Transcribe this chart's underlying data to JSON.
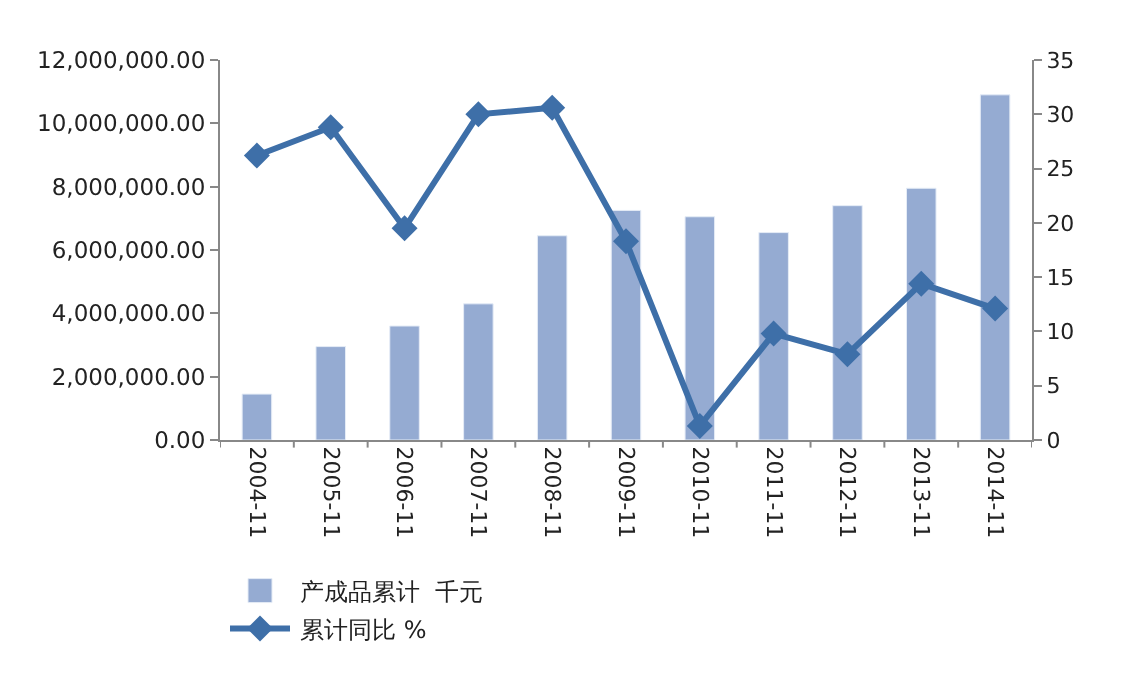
{
  "chart_data": {
    "type": "bar",
    "categories": [
      "2004-11",
      "2005-11",
      "2006-11",
      "2007-11",
      "2008-11",
      "2009-11",
      "2010-11",
      "2011-11",
      "2012-11",
      "2013-11",
      "2014-11"
    ],
    "series": [
      {
        "name": "产成品累计  千元",
        "color": "#95abd2",
        "values": [
          1450000,
          2950000,
          3600000,
          4300000,
          6450000,
          7250000,
          7050000,
          6550000,
          7400000,
          7950000,
          10900000
        ]
      },
      {
        "name": "累计同比 %",
        "type": "line",
        "axis": "y2",
        "color": "#3e6fa8",
        "marker": "diamond",
        "values": [
          26.2,
          28.8,
          19.5,
          30.0,
          30.6,
          18.3,
          1.3,
          9.8,
          7.9,
          14.4,
          12.1
        ]
      }
    ],
    "ylim": [
      0,
      12000000
    ],
    "yticks": [
      {
        "value": 0,
        "label": "0.00"
      },
      {
        "value": 2000000,
        "label": "2,000,000.00"
      },
      {
        "value": 4000000,
        "label": "4,000,000.00"
      },
      {
        "value": 6000000,
        "label": "6,000,000.00"
      },
      {
        "value": 8000000,
        "label": "8,000,000.00"
      },
      {
        "value": 10000000,
        "label": "10,000,000.00"
      },
      {
        "value": 12000000,
        "label": "12,000,000.00"
      }
    ],
    "y2lim": [
      0,
      35
    ],
    "y2ticks": [
      0,
      5,
      10,
      15,
      20,
      25,
      30,
      35
    ],
    "legend": "bottom left"
  }
}
